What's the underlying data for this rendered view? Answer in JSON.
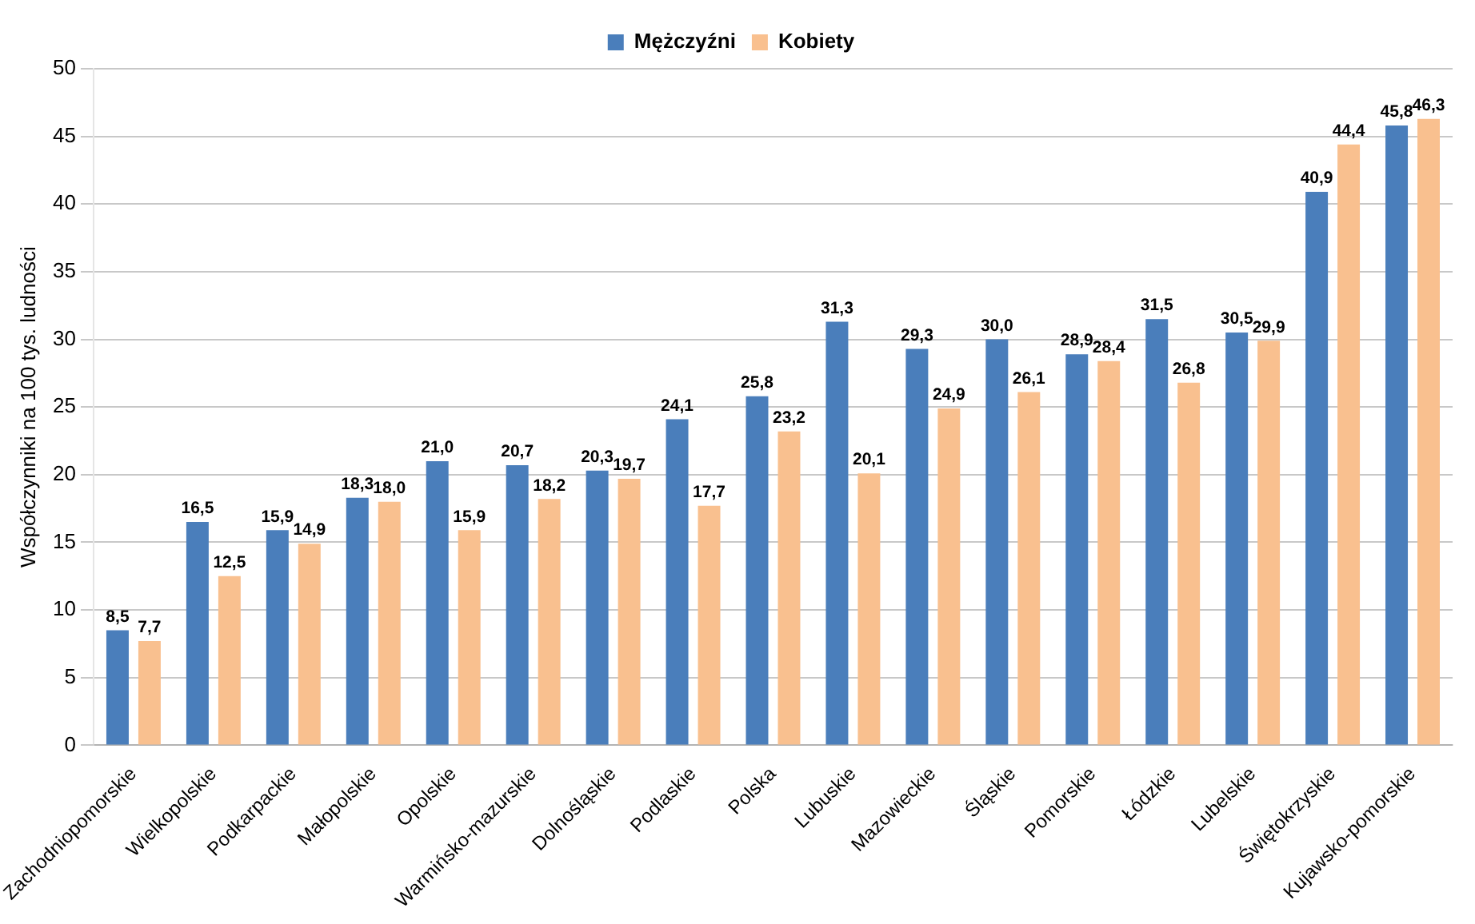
{
  "chart_data": {
    "type": "bar",
    "ylabel": "Współczynniki na 100 tys. ludności",
    "categories": [
      "Zachodniopomorskie",
      "Wielkopolskie",
      "Podkarpackie",
      "Małopolskie",
      "Opolskie",
      "Warmińsko-mazurskie",
      "Dolnośląskie",
      "Podlaskie",
      "Polska",
      "Lubuskie",
      "Mazowieckie",
      "Śląskie",
      "Pomorskie",
      "Łódzkie",
      "Lubelskie",
      "Świętokrzyskie",
      "Kujawsko-pomorskie"
    ],
    "series": [
      {
        "name": "Mężczyźni",
        "color": "#4a7ebb",
        "values": [
          8.5,
          16.5,
          15.9,
          18.3,
          21.0,
          20.7,
          20.3,
          24.1,
          25.8,
          31.3,
          29.3,
          30.0,
          28.9,
          31.5,
          30.5,
          40.9,
          45.8
        ],
        "value_labels": [
          "8,5",
          "16,5",
          "15,9",
          "18,3",
          "21,0",
          "20,7",
          "20,3",
          "24,1",
          "25,8",
          "31,3",
          "29,3",
          "30,0",
          "28,9",
          "31,5",
          "30,5",
          "40,9",
          "45,8"
        ]
      },
      {
        "name": "Kobiety",
        "color": "#f9c08f",
        "values": [
          7.7,
          12.5,
          14.9,
          18.0,
          15.9,
          18.2,
          19.7,
          17.7,
          23.2,
          20.1,
          24.9,
          26.1,
          28.4,
          26.8,
          29.9,
          44.4,
          46.3
        ],
        "value_labels": [
          "7,7",
          "12,5",
          "14,9",
          "18,0",
          "15,9",
          "18,2",
          "19,7",
          "17,7",
          "23,2",
          "20,1",
          "24,9",
          "26,1",
          "28,4",
          "26,8",
          "29,9",
          "44,4",
          "46,3"
        ]
      }
    ],
    "ylim": [
      0,
      50
    ],
    "yticks": [
      0,
      5,
      10,
      15,
      20,
      25,
      30,
      35,
      40,
      45,
      50
    ],
    "grid": "y",
    "legend": "top"
  }
}
